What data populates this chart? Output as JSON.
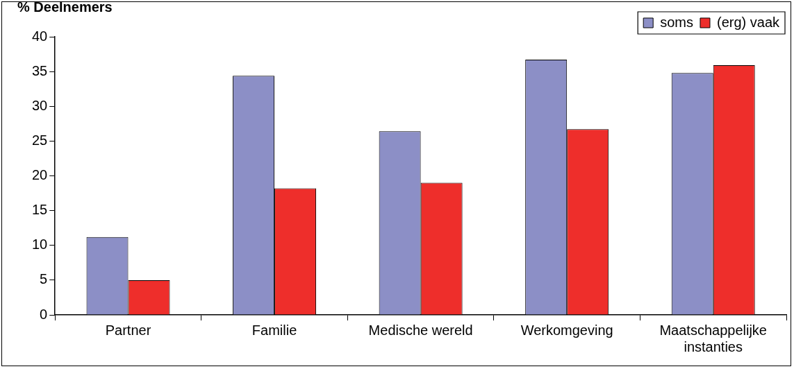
{
  "chart_data": {
    "type": "bar",
    "ylabel": "% Deelnemers",
    "categories": [
      "Partner",
      "Familie",
      "Medische wereld",
      "Werkomgeving",
      "Maatschappelijke instanties"
    ],
    "series": [
      {
        "name": "soms",
        "color": "#8c8fc6",
        "values": [
          11.2,
          34.4,
          26.4,
          36.7,
          34.8
        ]
      },
      {
        "name": "(erg) vaak",
        "color": "#ee2e2b",
        "values": [
          5.0,
          18.2,
          19.0,
          26.7,
          35.9
        ]
      }
    ],
    "ylim": [
      0,
      40
    ],
    "yticks": [
      0,
      5,
      10,
      15,
      20,
      25,
      30,
      35,
      40
    ],
    "grid": false,
    "legend": "top right"
  }
}
